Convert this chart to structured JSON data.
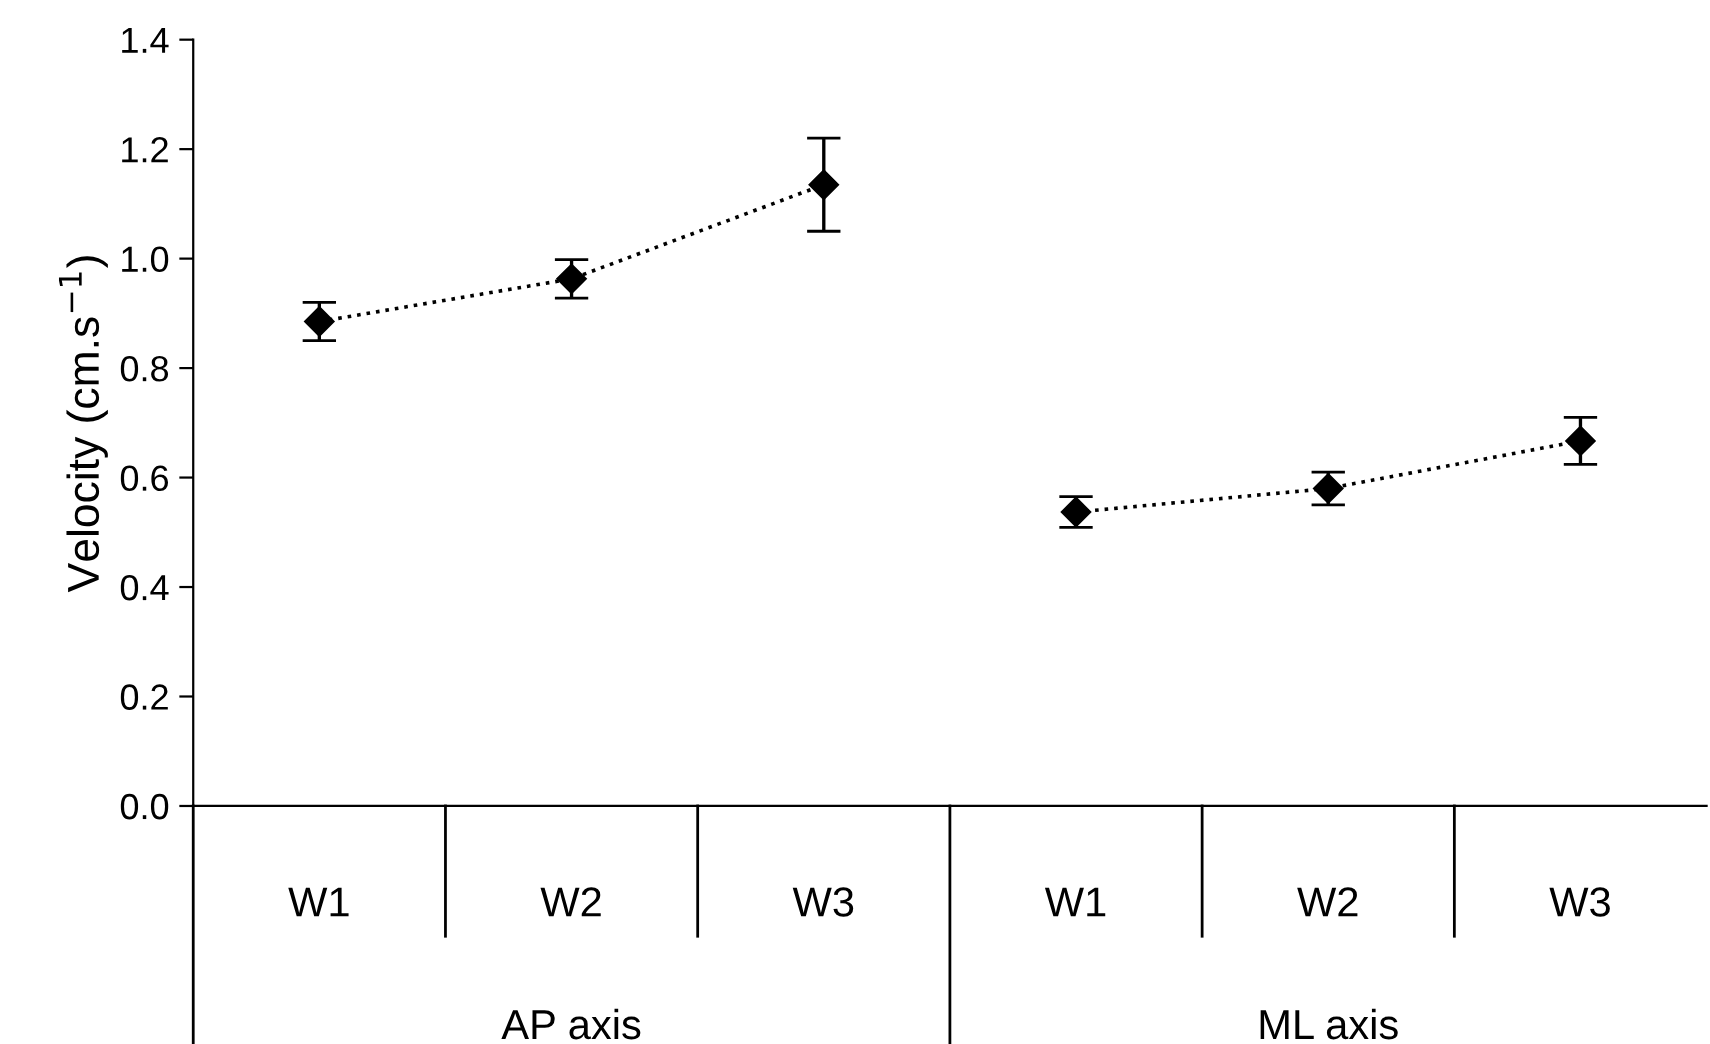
{
  "chart_data": {
    "type": "line",
    "ylabel": "Velocity (cm.s$^{−1}$)",
    "categories": [
      "W1",
      "W2",
      "W3",
      "W1",
      "W2",
      "W3"
    ],
    "annotations": [
      "AP axis",
      "ML axis"
    ],
    "series": [
      {
        "color": "#000000",
        "values": [
          0.885,
          0.963,
          1.135,
          null,
          null,
          null
        ],
        "errors": [
          0.035,
          0.035,
          0.085,
          null,
          null,
          null
        ]
      },
      {
        "color": "#000000",
        "values": [
          null,
          null,
          null,
          0.537,
          0.58,
          0.667
        ],
        "errors": [
          null,
          null,
          null,
          0.028,
          0.03,
          0.043
        ]
      }
    ],
    "ylim": [
      0,
      1.4
    ],
    "yticks": [
      {
        "value": 0,
        "label": "0.0"
      },
      0.2,
      0.4,
      0.6,
      0.8,
      {
        "value": 1,
        "label": "1.0"
      },
      1.2,
      1.4
    ],
    "marker": "diamond",
    "line_style": "dotted",
    "grid": false,
    "legend": false
  }
}
